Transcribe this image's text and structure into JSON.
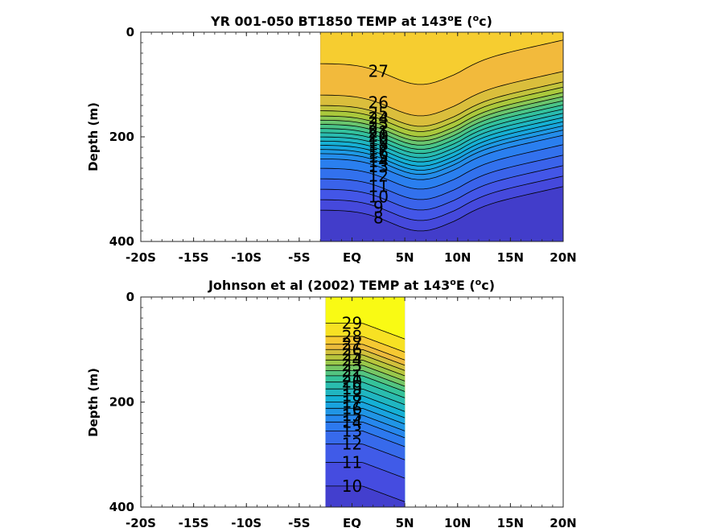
{
  "chart_data": [
    {
      "type": "heatmap",
      "title": "YR 001-050 BT1850 TEMP at 143",
      "title_superscript": "o",
      "title_suffix": "E (",
      "title_unit_super": "o",
      "title_unit": "c)",
      "ylabel": "Depth (m)",
      "xlabel": "",
      "x_ticks": [
        "-20S",
        "-15S",
        "-10S",
        "-5S",
        "EQ",
        "5N",
        "10N",
        "15N",
        "20N"
      ],
      "y_ticks": [
        "0",
        "200",
        "400"
      ],
      "xlim": [
        -20,
        20
      ],
      "ylim": [
        0,
        400
      ],
      "data_extent_lat": [
        -3,
        20
      ],
      "contour_labels": [
        "27",
        "26",
        "25",
        "24",
        "23",
        "22",
        "21",
        "20",
        "19",
        "18",
        "17",
        "16",
        "15",
        "14",
        "13",
        "12",
        "11",
        "10",
        "9",
        "8"
      ],
      "isotherm_depths_at_eq": {
        "27": 60,
        "26": 120,
        "25": 140,
        "24": 150,
        "23": 160,
        "22": 168,
        "21": 176,
        "20": 184,
        "19": 192,
        "18": 200,
        "17": 208,
        "16": 216,
        "15": 224,
        "14": 232,
        "13": 242,
        "12": 260,
        "11": 280,
        "10": 300,
        "9": 320,
        "8": 340
      }
    },
    {
      "type": "heatmap",
      "title": "Johnson et al (2002) TEMP at 143",
      "title_superscript": "o",
      "title_suffix": "E (",
      "title_unit_super": "o",
      "title_unit": "c)",
      "ylabel": "Depth (m)",
      "xlabel": "",
      "x_ticks": [
        "-20S",
        "-15S",
        "-10S",
        "-5S",
        "EQ",
        "5N",
        "10N",
        "15N",
        "20N"
      ],
      "y_ticks": [
        "0",
        "200",
        "400"
      ],
      "xlim": [
        -20,
        20
      ],
      "ylim": [
        0,
        400
      ],
      "data_extent_lat": [
        -2.5,
        5
      ],
      "contour_labels": [
        "29",
        "28",
        "27",
        "26",
        "25",
        "24",
        "23",
        "22",
        "21",
        "20",
        "19",
        "18",
        "17",
        "16",
        "15",
        "14",
        "13",
        "12",
        "11",
        "10"
      ],
      "isotherm_depths_at_eq": {
        "29": 50,
        "28": 75,
        "27": 90,
        "26": 100,
        "25": 110,
        "24": 120,
        "23": 130,
        "22": 140,
        "21": 150,
        "20": 162,
        "19": 175,
        "18": 188,
        "17": 200,
        "16": 212,
        "15": 225,
        "14": 238,
        "13": 255,
        "12": 280,
        "11": 315,
        "10": 360
      }
    }
  ]
}
